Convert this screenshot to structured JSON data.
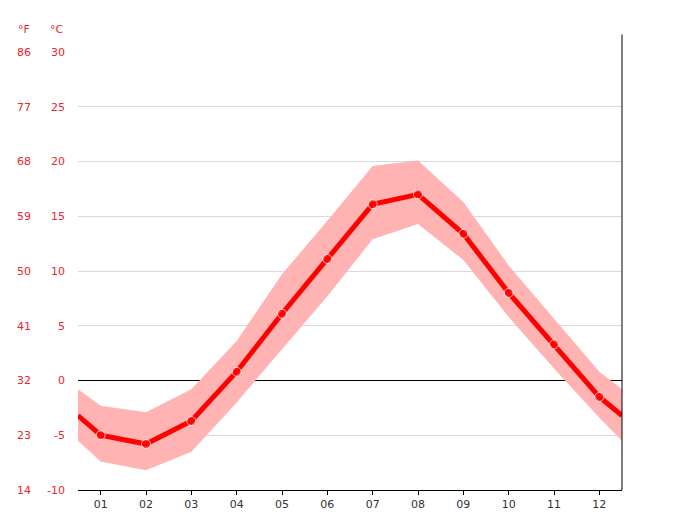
{
  "chart_data": {
    "type": "line",
    "y_label": "°C",
    "y2_label": "°F",
    "x": [
      0.5,
      1,
      2,
      3,
      4,
      5,
      6,
      7,
      8,
      9,
      10,
      11,
      12,
      12.5
    ],
    "values": [
      -3.2,
      -5.0,
      -5.8,
      -3.7,
      0.8,
      6.1,
      11.1,
      16.1,
      17.0,
      13.4,
      8.0,
      3.3,
      -1.5,
      -3.2
    ],
    "low": [
      -5.5,
      -7.4,
      -8.2,
      -6.5,
      -2.0,
      2.8,
      7.7,
      12.9,
      14.3,
      11.0,
      5.8,
      1.1,
      -3.4,
      -5.5
    ],
    "high": [
      -0.8,
      -2.3,
      -2.9,
      -0.8,
      3.6,
      9.7,
      14.6,
      19.6,
      20.1,
      16.3,
      10.5,
      5.7,
      0.8,
      -0.8
    ],
    "color": "#ff0000",
    "band_color": "#ffb3b3",
    "marker": "circle",
    "grid": true,
    "xlim": [
      0.5,
      12.5
    ],
    "xticks": [
      {
        "value": 1,
        "label": "01"
      },
      {
        "value": 2,
        "label": "02"
      },
      {
        "value": 3,
        "label": "03"
      },
      {
        "value": 4,
        "label": "04"
      },
      {
        "value": 5,
        "label": "05"
      },
      {
        "value": 6,
        "label": "06"
      },
      {
        "value": 7,
        "label": "07"
      },
      {
        "value": 8,
        "label": "08"
      },
      {
        "value": 9,
        "label": "09"
      },
      {
        "value": 10,
        "label": "10"
      },
      {
        "value": 11,
        "label": "11"
      },
      {
        "value": 12,
        "label": "12"
      }
    ],
    "ylim": [
      -10,
      30
    ],
    "yticks": [
      -10,
      -5,
      0,
      5,
      10,
      15,
      20,
      25,
      30
    ],
    "y2lim": [
      14,
      86
    ],
    "y2ticks": [
      14,
      23,
      32,
      41,
      50,
      59,
      68,
      77,
      86
    ]
  }
}
